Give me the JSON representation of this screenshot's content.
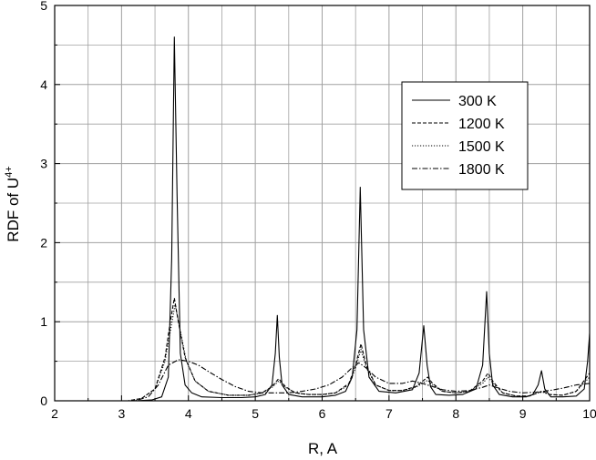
{
  "chart_data": {
    "type": "line",
    "title": "",
    "xlabel": "R, A",
    "ylabel": "RDF of U",
    "ylabel_superscript": "4+",
    "xlim": [
      2,
      10
    ],
    "ylim": [
      0,
      5
    ],
    "xticks": [
      "2",
      "3",
      "4",
      "5",
      "6",
      "7",
      "8",
      "9",
      "10"
    ],
    "yticks": [
      "0",
      "1",
      "2",
      "3",
      "4",
      "5"
    ],
    "grid": true,
    "legend_position": "top-right",
    "series": [
      {
        "name": "300 K",
        "dash": "solid",
        "x": [
          2.0,
          3.2,
          3.45,
          3.6,
          3.7,
          3.75,
          3.79,
          3.83,
          3.88,
          3.95,
          4.05,
          4.2,
          4.5,
          4.8,
          5.0,
          5.15,
          5.25,
          5.3,
          5.33,
          5.36,
          5.4,
          5.5,
          5.7,
          6.0,
          6.2,
          6.35,
          6.45,
          6.52,
          6.57,
          6.62,
          6.7,
          6.85,
          7.1,
          7.35,
          7.45,
          7.52,
          7.57,
          7.62,
          7.7,
          7.9,
          8.1,
          8.3,
          8.4,
          8.46,
          8.5,
          8.55,
          8.65,
          8.85,
          9.05,
          9.15,
          9.23,
          9.28,
          9.33,
          9.42,
          9.6,
          9.8,
          9.92,
          9.97,
          10.0
        ],
        "y": [
          0,
          0,
          0.01,
          0.05,
          0.3,
          1.8,
          4.6,
          2.6,
          0.6,
          0.2,
          0.1,
          0.05,
          0.04,
          0.04,
          0.05,
          0.08,
          0.2,
          0.6,
          1.08,
          0.55,
          0.2,
          0.08,
          0.05,
          0.05,
          0.07,
          0.12,
          0.3,
          0.9,
          2.7,
          0.9,
          0.3,
          0.12,
          0.1,
          0.14,
          0.35,
          0.95,
          0.45,
          0.18,
          0.08,
          0.07,
          0.08,
          0.15,
          0.45,
          1.38,
          0.6,
          0.2,
          0.08,
          0.05,
          0.05,
          0.08,
          0.2,
          0.38,
          0.15,
          0.05,
          0.05,
          0.06,
          0.15,
          0.5,
          0.85
        ]
      },
      {
        "name": "1200 K",
        "dash": "dashed",
        "x": [
          2.0,
          3.1,
          3.3,
          3.5,
          3.65,
          3.72,
          3.79,
          3.85,
          3.95,
          4.1,
          4.3,
          4.6,
          4.9,
          5.1,
          5.25,
          5.35,
          5.45,
          5.6,
          5.8,
          6.0,
          6.2,
          6.4,
          6.5,
          6.58,
          6.66,
          6.8,
          7.0,
          7.2,
          7.4,
          7.52,
          7.58,
          7.65,
          7.8,
          8.0,
          8.2,
          8.4,
          8.48,
          8.56,
          8.7,
          8.9,
          9.1,
          9.22,
          9.3,
          9.4,
          9.6,
          9.8,
          10.0
        ],
        "y": [
          0,
          0,
          0.03,
          0.15,
          0.55,
          0.95,
          1.3,
          1.0,
          0.55,
          0.25,
          0.12,
          0.07,
          0.07,
          0.1,
          0.18,
          0.28,
          0.18,
          0.1,
          0.08,
          0.08,
          0.1,
          0.22,
          0.45,
          0.72,
          0.45,
          0.2,
          0.13,
          0.13,
          0.18,
          0.26,
          0.3,
          0.22,
          0.12,
          0.1,
          0.12,
          0.25,
          0.35,
          0.24,
          0.1,
          0.06,
          0.06,
          0.1,
          0.12,
          0.08,
          0.07,
          0.12,
          0.35
        ]
      },
      {
        "name": "1500 K",
        "dash": "dotted",
        "x": [
          2.0,
          3.1,
          3.3,
          3.5,
          3.65,
          3.73,
          3.8,
          3.87,
          3.97,
          4.1,
          4.3,
          4.6,
          4.9,
          5.1,
          5.25,
          5.35,
          5.45,
          5.6,
          5.8,
          6.0,
          6.2,
          6.4,
          6.5,
          6.58,
          6.66,
          6.8,
          7.0,
          7.2,
          7.4,
          7.52,
          7.58,
          7.65,
          7.8,
          8.0,
          8.2,
          8.4,
          8.48,
          8.56,
          8.7,
          8.9,
          9.1,
          9.22,
          9.3,
          9.4,
          9.6,
          9.8,
          10.0
        ],
        "y": [
          0,
          0,
          0.03,
          0.15,
          0.5,
          0.88,
          1.22,
          0.92,
          0.5,
          0.25,
          0.12,
          0.07,
          0.07,
          0.1,
          0.17,
          0.25,
          0.17,
          0.1,
          0.08,
          0.08,
          0.1,
          0.2,
          0.42,
          0.65,
          0.42,
          0.2,
          0.13,
          0.13,
          0.17,
          0.23,
          0.26,
          0.2,
          0.12,
          0.1,
          0.12,
          0.22,
          0.3,
          0.22,
          0.1,
          0.06,
          0.06,
          0.1,
          0.11,
          0.08,
          0.07,
          0.12,
          0.3
        ]
      },
      {
        "name": "1800 K",
        "dash": "dashdot",
        "x": [
          2.0,
          3.2,
          3.4,
          3.55,
          3.7,
          3.85,
          4.0,
          4.15,
          4.3,
          4.5,
          4.7,
          4.9,
          5.1,
          5.3,
          5.5,
          5.7,
          5.9,
          6.1,
          6.3,
          6.45,
          6.55,
          6.65,
          6.8,
          7.0,
          7.2,
          7.35,
          7.5,
          7.65,
          7.8,
          8.0,
          8.2,
          8.4,
          8.5,
          8.6,
          8.8,
          9.0,
          9.2,
          9.4,
          9.6,
          9.8,
          10.0
        ],
        "y": [
          0,
          0,
          0.05,
          0.2,
          0.45,
          0.52,
          0.5,
          0.45,
          0.37,
          0.27,
          0.18,
          0.12,
          0.1,
          0.1,
          0.1,
          0.12,
          0.15,
          0.2,
          0.3,
          0.42,
          0.48,
          0.42,
          0.3,
          0.22,
          0.22,
          0.25,
          0.22,
          0.18,
          0.14,
          0.12,
          0.13,
          0.17,
          0.2,
          0.17,
          0.12,
          0.1,
          0.11,
          0.13,
          0.16,
          0.2,
          0.22
        ]
      }
    ]
  },
  "colors": {
    "background": "#ffffff",
    "grid": "#a0a0a0",
    "axis": "#000000",
    "series": "#000000"
  }
}
